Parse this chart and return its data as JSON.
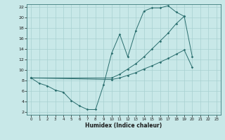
{
  "xlabel": "Humidex (Indice chaleur)",
  "bg_color": "#c8e8e8",
  "line_color": "#2a6e6e",
  "grid_color": "#a8d0d0",
  "xlim": [
    -0.5,
    23.5
  ],
  "ylim": [
    1.5,
    22.5
  ],
  "xticks": [
    0,
    1,
    2,
    3,
    4,
    5,
    6,
    7,
    8,
    9,
    10,
    11,
    12,
    13,
    14,
    15,
    16,
    17,
    18,
    19,
    20,
    21,
    22,
    23
  ],
  "yticks": [
    2,
    4,
    6,
    8,
    10,
    12,
    14,
    16,
    18,
    20,
    22
  ],
  "curve1_x": [
    0,
    1,
    2,
    3,
    4,
    5,
    6,
    7,
    8,
    9,
    10,
    11,
    12,
    13,
    14,
    15,
    16,
    17,
    18,
    19
  ],
  "curve1_y": [
    8.5,
    7.5,
    7.0,
    6.2,
    5.8,
    4.2,
    3.2,
    2.5,
    2.5,
    7.2,
    13.2,
    16.8,
    12.5,
    17.5,
    21.2,
    21.8,
    21.8,
    22.2,
    21.0,
    20.2
  ],
  "curve2_x": [
    0,
    10,
    11,
    12,
    13,
    14,
    15,
    16,
    17,
    18,
    19,
    20,
    21,
    22,
    23
  ],
  "curve2_y": [
    8.5,
    8.2,
    8.5,
    9.0,
    9.5,
    10.2,
    10.8,
    11.5,
    12.2,
    13.0,
    13.8,
    10.5,
    null,
    null,
    null
  ],
  "curve3_x": [
    0,
    10,
    11,
    12,
    13,
    14,
    15,
    16,
    17,
    18,
    19,
    20,
    21,
    22,
    23
  ],
  "curve3_y": [
    8.5,
    8.5,
    9.2,
    10.2,
    11.2,
    12.5,
    14.0,
    15.5,
    17.0,
    18.8,
    20.2,
    12.5,
    null,
    null,
    null
  ]
}
